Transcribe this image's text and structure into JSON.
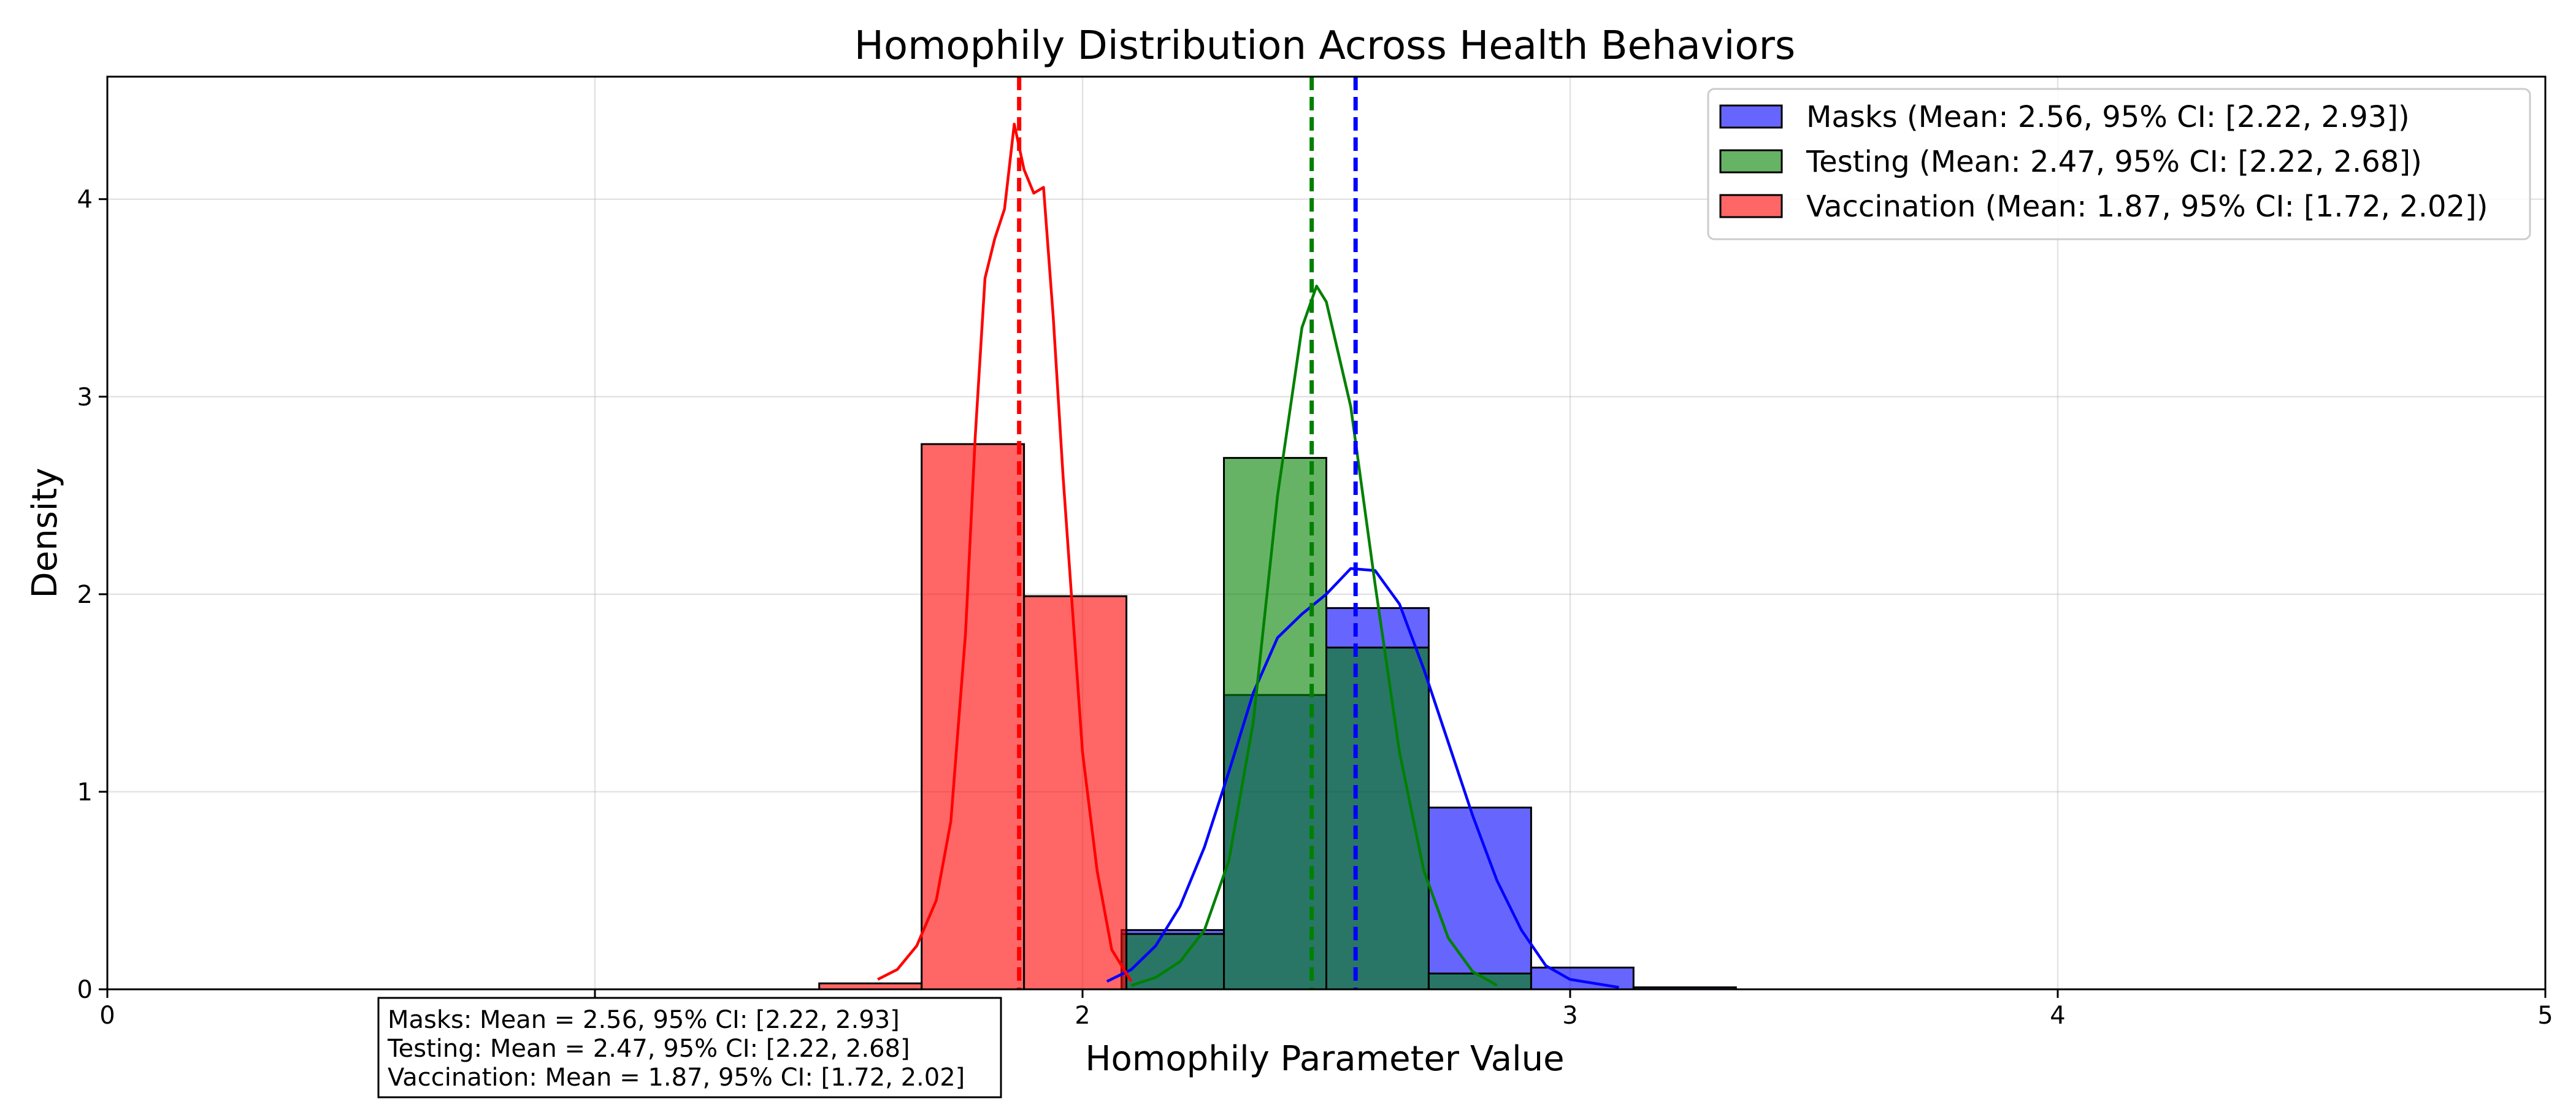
{
  "chart_data": {
    "type": "histogram",
    "title": "Homophily Distribution Across Health Behaviors",
    "xlabel": "Homophily Parameter Value",
    "ylabel": "Density",
    "xlim": [
      0,
      5
    ],
    "ylim": [
      0,
      4.62
    ],
    "xticks": [
      0,
      1,
      2,
      3,
      4,
      5
    ],
    "yticks": [
      0,
      1,
      2,
      3,
      4
    ],
    "grid": true,
    "legend_position": "top-right",
    "bin_width": 0.21,
    "series": [
      {
        "name": "Masks",
        "legend_label": "Masks (Mean: 2.56, 95% CI: [2.22, 2.93])",
        "color": "#0000ff",
        "bar_alpha": 0.6,
        "mean": 2.56,
        "bins": [
          {
            "x0": 2.08,
            "density": 0.3
          },
          {
            "x0": 2.29,
            "density": 1.49
          },
          {
            "x0": 2.5,
            "density": 1.93
          },
          {
            "x0": 2.71,
            "density": 0.92
          },
          {
            "x0": 2.92,
            "density": 0.11
          },
          {
            "x0": 3.13,
            "density": 0.01
          }
        ],
        "kde": [
          [
            2.05,
            0.04
          ],
          [
            2.1,
            0.1
          ],
          [
            2.15,
            0.22
          ],
          [
            2.2,
            0.42
          ],
          [
            2.25,
            0.72
          ],
          [
            2.3,
            1.1
          ],
          [
            2.35,
            1.5
          ],
          [
            2.4,
            1.78
          ],
          [
            2.45,
            1.9
          ],
          [
            2.5,
            2.0
          ],
          [
            2.55,
            2.13
          ],
          [
            2.6,
            2.12
          ],
          [
            2.65,
            1.95
          ],
          [
            2.7,
            1.62
          ],
          [
            2.75,
            1.25
          ],
          [
            2.8,
            0.88
          ],
          [
            2.85,
            0.55
          ],
          [
            2.9,
            0.3
          ],
          [
            2.95,
            0.12
          ],
          [
            3.0,
            0.05
          ],
          [
            3.1,
            0.01
          ]
        ]
      },
      {
        "name": "Testing",
        "legend_label": "Testing (Mean: 2.47, 95% CI: [2.22, 2.68])",
        "color": "#008000",
        "bar_alpha": 0.6,
        "mean": 2.47,
        "bins": [
          {
            "x0": 2.08,
            "density": 0.28
          },
          {
            "x0": 2.29,
            "density": 2.69
          },
          {
            "x0": 2.5,
            "density": 1.73
          },
          {
            "x0": 2.71,
            "density": 0.08
          }
        ],
        "kde": [
          [
            2.1,
            0.02
          ],
          [
            2.15,
            0.06
          ],
          [
            2.2,
            0.14
          ],
          [
            2.25,
            0.3
          ],
          [
            2.3,
            0.65
          ],
          [
            2.35,
            1.35
          ],
          [
            2.4,
            2.5
          ],
          [
            2.45,
            3.35
          ],
          [
            2.48,
            3.56
          ],
          [
            2.5,
            3.48
          ],
          [
            2.55,
            2.95
          ],
          [
            2.6,
            2.05
          ],
          [
            2.65,
            1.2
          ],
          [
            2.7,
            0.6
          ],
          [
            2.75,
            0.26
          ],
          [
            2.8,
            0.09
          ],
          [
            2.85,
            0.02
          ]
        ]
      },
      {
        "name": "Vaccination",
        "legend_label": "Vaccination (Mean: 1.87, 95% CI: [1.72, 2.02])",
        "color": "#ff0000",
        "bar_alpha": 0.6,
        "mean": 1.87,
        "bins": [
          {
            "x0": 1.46,
            "density": 0.03
          },
          {
            "x0": 1.67,
            "density": 2.76
          },
          {
            "x0": 1.88,
            "density": 1.99
          }
        ],
        "kde": [
          [
            1.58,
            0.05
          ],
          [
            1.62,
            0.1
          ],
          [
            1.66,
            0.22
          ],
          [
            1.7,
            0.45
          ],
          [
            1.73,
            0.85
          ],
          [
            1.76,
            1.8
          ],
          [
            1.78,
            2.8
          ],
          [
            1.8,
            3.6
          ],
          [
            1.82,
            3.8
          ],
          [
            1.84,
            3.95
          ],
          [
            1.86,
            4.38
          ],
          [
            1.88,
            4.15
          ],
          [
            1.9,
            4.03
          ],
          [
            1.92,
            4.06
          ],
          [
            1.94,
            3.4
          ],
          [
            1.96,
            2.6
          ],
          [
            1.98,
            1.9
          ],
          [
            2.0,
            1.2
          ],
          [
            2.03,
            0.6
          ],
          [
            2.06,
            0.2
          ],
          [
            2.1,
            0.04
          ]
        ]
      }
    ],
    "annotation_lines": [
      "Masks: Mean = 2.56, 95% CI: [2.22, 2.93]",
      "Testing: Mean = 2.47, 95% CI: [2.22, 2.68]",
      "Vaccination: Mean = 1.87, 95% CI: [1.72, 2.02]"
    ]
  },
  "overlap_color": "#267564"
}
